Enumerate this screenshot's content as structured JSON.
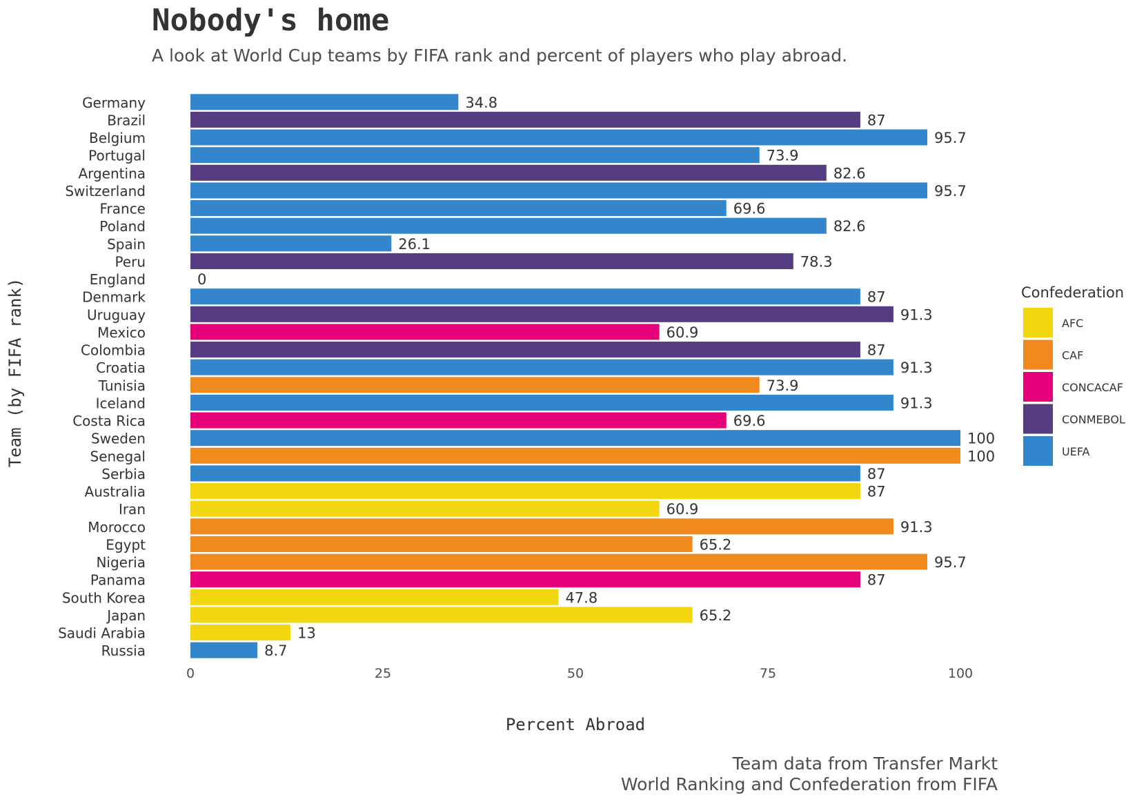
{
  "chart_data": {
    "type": "bar",
    "orientation": "horizontal",
    "title": "Nobody's home",
    "subtitle": "A look at World Cup teams by FIFA rank and percent of players who play abroad.",
    "xlabel": "Percent Abroad",
    "ylabel": "Team (by FIFA rank)",
    "xlim": [
      0,
      100
    ],
    "xticks": [
      "0",
      "25",
      "50",
      "75",
      "100"
    ],
    "grid": false,
    "legend_position": "right",
    "legend_title": "Confederation",
    "legend": [
      {
        "name": "AFC",
        "color": "#F2D60F"
      },
      {
        "name": "CAF",
        "color": "#F08A1C"
      },
      {
        "name": "CONCACAF",
        "color": "#E5007A"
      },
      {
        "name": "CONMEBOL",
        "color": "#563C81"
      },
      {
        "name": "UEFA",
        "color": "#3385CC"
      }
    ],
    "categories": [
      "Germany",
      "Brazil",
      "Belgium",
      "Portugal",
      "Argentina",
      "Switzerland",
      "France",
      "Poland",
      "Spain",
      "Peru",
      "England",
      "Denmark",
      "Uruguay",
      "Mexico",
      "Colombia",
      "Croatia",
      "Tunisia",
      "Iceland",
      "Costa Rica",
      "Sweden",
      "Senegal",
      "Serbia",
      "Australia",
      "Iran",
      "Morocco",
      "Egypt",
      "Nigeria",
      "Panama",
      "South Korea",
      "Japan",
      "Saudi Arabia",
      "Russia"
    ],
    "values": [
      34.8,
      87,
      95.7,
      73.9,
      82.6,
      95.7,
      69.6,
      82.6,
      26.1,
      78.3,
      0,
      87,
      91.3,
      60.9,
      87,
      91.3,
      73.9,
      91.3,
      69.6,
      100,
      100,
      87,
      87,
      60.9,
      91.3,
      65.2,
      95.7,
      87,
      47.8,
      65.2,
      13,
      8.7
    ],
    "confederations": [
      "UEFA",
      "CONMEBOL",
      "UEFA",
      "UEFA",
      "CONMEBOL",
      "UEFA",
      "UEFA",
      "UEFA",
      "UEFA",
      "CONMEBOL",
      "UEFA",
      "UEFA",
      "CONMEBOL",
      "CONCACAF",
      "CONMEBOL",
      "UEFA",
      "CAF",
      "UEFA",
      "CONCACAF",
      "UEFA",
      "CAF",
      "UEFA",
      "AFC",
      "AFC",
      "CAF",
      "CAF",
      "CAF",
      "CONCACAF",
      "AFC",
      "AFC",
      "AFC",
      "UEFA"
    ],
    "value_labels": [
      "34.8",
      "87",
      "95.7",
      "73.9",
      "82.6",
      "95.7",
      "69.6",
      "82.6",
      "26.1",
      "78.3",
      "0",
      "87",
      "91.3",
      "60.9",
      "87",
      "91.3",
      "73.9",
      "91.3",
      "69.6",
      "100",
      "100",
      "87",
      "87",
      "60.9",
      "91.3",
      "65.2",
      "95.7",
      "87",
      "47.8",
      "65.2",
      "13",
      "8.7"
    ]
  },
  "caption": {
    "line1": "Team data from Transfer Markt",
    "line2": "World Ranking and Confederation from FIFA"
  }
}
